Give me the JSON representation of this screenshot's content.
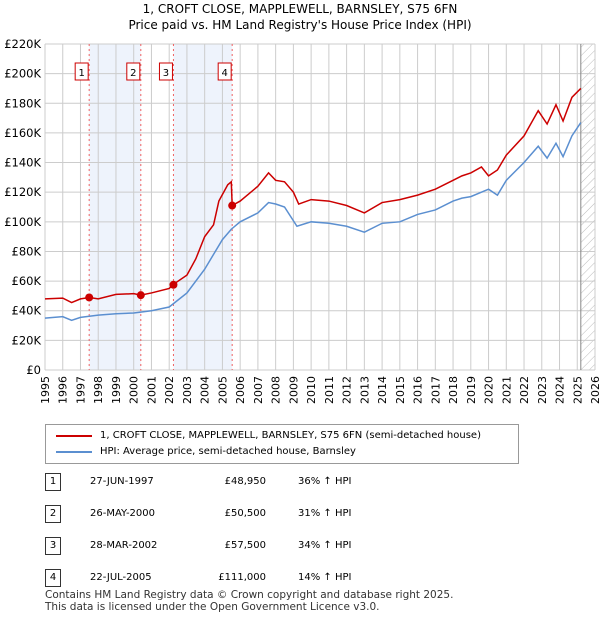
{
  "title": "1, CROFT CLOSE, MAPPLEWELL, BARNSLEY, S75 6FN",
  "subtitle": "Price paid vs. HM Land Registry's House Price Index (HPI)",
  "chart_data": {
    "type": "line",
    "xlim": [
      1995,
      2026
    ],
    "ylim": [
      0,
      220000
    ],
    "yticks": [
      0,
      20000,
      40000,
      60000,
      80000,
      100000,
      120000,
      140000,
      160000,
      180000,
      200000,
      220000
    ],
    "ytick_labels": [
      "£0",
      "£20K",
      "£40K",
      "£60K",
      "£80K",
      "£100K",
      "£120K",
      "£140K",
      "£160K",
      "£180K",
      "£200K",
      "£220K"
    ],
    "xticks": [
      1995,
      1996,
      1997,
      1998,
      1999,
      2000,
      2001,
      2002,
      2003,
      2004,
      2005,
      2006,
      2007,
      2008,
      2009,
      2010,
      2011,
      2012,
      2013,
      2014,
      2015,
      2016,
      2017,
      2018,
      2019,
      2020,
      2021,
      2022,
      2023,
      2024,
      2025,
      2026
    ],
    "forecast_start": 2025.2,
    "series": [
      {
        "name": "1, CROFT CLOSE, MAPPLEWELL, BARNSLEY, S75 6FN (semi-detached house)",
        "color": "#cc0000",
        "x": [
          1995,
          1996,
          1996.5,
          1997,
          1997.5,
          1998,
          1999,
          2000,
          2000.4,
          2001,
          2002,
          2002.2,
          2003,
          2003.5,
          2004,
          2004.5,
          2004.8,
          2005.3,
          2005.5,
          2005.55,
          2006,
          2007,
          2007.6,
          2008,
          2008.5,
          2009,
          2009.3,
          2010,
          2011,
          2012,
          2013,
          2014,
          2015,
          2016,
          2017,
          2018,
          2018.5,
          2019,
          2019.6,
          2020,
          2020.5,
          2021,
          2022,
          2022.8,
          2023.3,
          2023.8,
          2024.2,
          2024.7,
          2025.2
        ],
        "y": [
          48000,
          48500,
          45500,
          48000,
          48950,
          48000,
          51000,
          51500,
          50500,
          52000,
          55000,
          57500,
          64000,
          75000,
          90000,
          98000,
          114000,
          125000,
          127000,
          111000,
          114000,
          124000,
          133000,
          128000,
          127000,
          120000,
          112000,
          115000,
          114000,
          111000,
          106000,
          113000,
          115000,
          118000,
          122000,
          128000,
          131000,
          133000,
          137000,
          131000,
          135000,
          145000,
          158000,
          175000,
          166000,
          179000,
          168000,
          184000,
          190000
        ]
      },
      {
        "name": "HPI: Average price, semi-detached house, Barnsley",
        "color": "#5b8fd0",
        "x": [
          1995,
          1996,
          1996.5,
          1997,
          1998,
          1999,
          2000,
          2001,
          2002,
          2003,
          2004,
          2004.5,
          2005,
          2005.5,
          2006,
          2007,
          2007.6,
          2008,
          2008.5,
          2009.2,
          2010,
          2011,
          2012,
          2013,
          2014,
          2015,
          2016,
          2017,
          2018,
          2018.5,
          2019,
          2020,
          2020.5,
          2021,
          2022,
          2022.8,
          2023.3,
          2023.8,
          2024.2,
          2024.7,
          2025.2
        ],
        "y": [
          35000,
          36000,
          33500,
          35500,
          37000,
          38000,
          38500,
          40000,
          42500,
          52000,
          68000,
          78000,
          88000,
          95000,
          100000,
          106000,
          113000,
          112000,
          110000,
          97000,
          100000,
          99000,
          97000,
          93000,
          99000,
          100000,
          105000,
          108000,
          114000,
          116000,
          117000,
          122000,
          118000,
          128000,
          140000,
          151000,
          143000,
          153000,
          144000,
          158000,
          167000
        ]
      }
    ],
    "sales": [
      {
        "n": "1",
        "x": 1997.49,
        "date": "27-JUN-1997",
        "price": 48950,
        "price_label": "£48,950",
        "hpi": "36% ↑ HPI"
      },
      {
        "n": "2",
        "x": 2000.4,
        "date": "26-MAY-2000",
        "price": 50500,
        "price_label": "£50,500",
        "hpi": "31% ↑ HPI"
      },
      {
        "n": "3",
        "x": 2002.24,
        "date": "28-MAR-2002",
        "price": 57500,
        "price_label": "£57,500",
        "hpi": "34% ↑ HPI"
      },
      {
        "n": "4",
        "x": 2005.55,
        "date": "22-JUL-2005",
        "price": 111000,
        "price_label": "£111,000",
        "hpi": "14% ↑ HPI"
      }
    ]
  },
  "legend": {
    "red": "1, CROFT CLOSE, MAPPLEWELL, BARNSLEY, S75 6FN (semi-detached house)",
    "blue": "HPI: Average price, semi-detached house, Barnsley"
  },
  "footer": {
    "line1": "Contains HM Land Registry data © Crown copyright and database right 2025.",
    "line2": "This data is licensed under the Open Government Licence v3.0."
  }
}
